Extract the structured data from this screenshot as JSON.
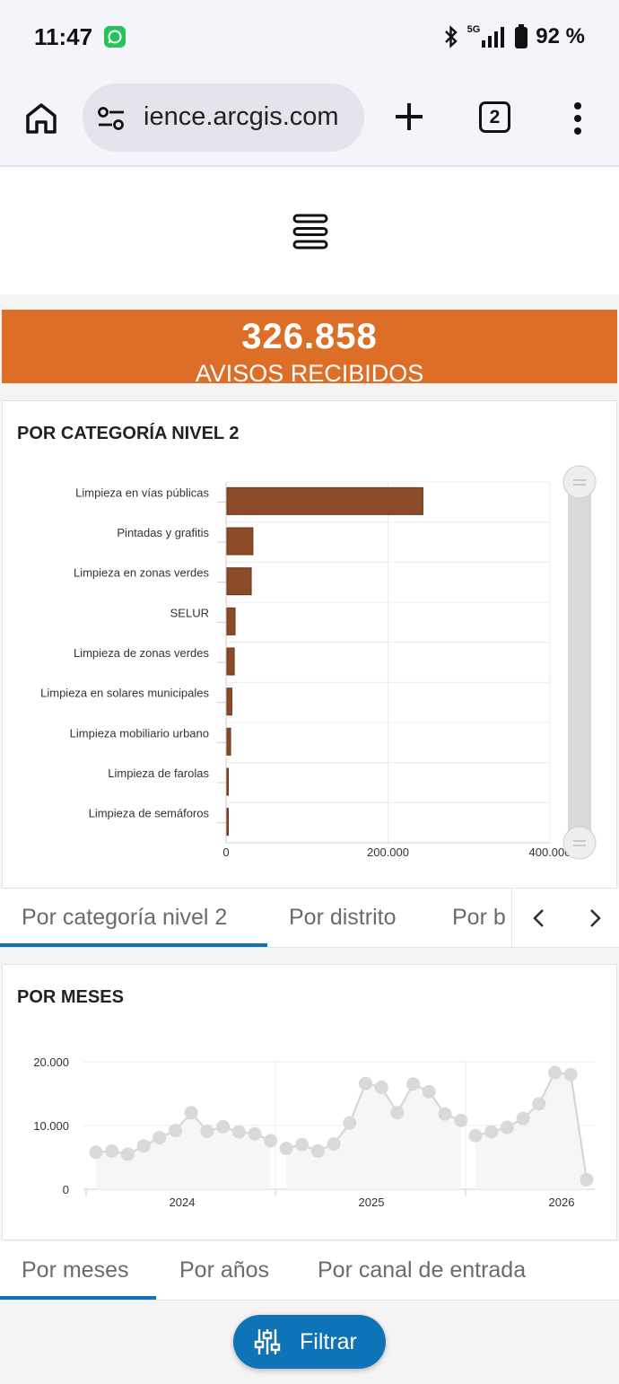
{
  "status_bar": {
    "time": "11:47",
    "network": "5G",
    "battery": "92 %"
  },
  "browser": {
    "url": "ience.arcgis.com",
    "tab_count": "2"
  },
  "kpi": {
    "value": "326.858",
    "label": "AVISOS RECIBIDOS",
    "color": "#dc6e28"
  },
  "category_panel": {
    "title": "POR CATEGORÍA NIVEL 2"
  },
  "category_tabs": [
    {
      "label": "Por categoría nivel 2",
      "active": true
    },
    {
      "label": "Por distrito",
      "active": false
    },
    {
      "label": "Por b",
      "active": false
    }
  ],
  "months_panel": {
    "title": "POR MESES"
  },
  "months_tabs": [
    {
      "label": "Por meses",
      "active": true
    },
    {
      "label": "Por años",
      "active": false
    },
    {
      "label": "Por canal de entrada",
      "active": false
    }
  ],
  "filter_button": {
    "label": "Filtrar"
  },
  "chart_data": [
    {
      "type": "bar",
      "orientation": "horizontal",
      "categories": [
        "Limpieza en vías públicas",
        "Pintadas y grafitis",
        "Limpieza en zonas verdes",
        "SELUR",
        "Limpieza de zonas verdes",
        "Limpieza en solares municipales",
        "Limpieza mobiliario urbano",
        "Limpieza de farolas",
        "Limpieza de semáforos"
      ],
      "values": [
        242000,
        32000,
        30000,
        10000,
        9000,
        6000,
        4500,
        1500,
        1200
      ],
      "xlim": [
        0,
        400000
      ],
      "xticks": [
        "0",
        "200.000",
        "400.000"
      ],
      "bar_color": "#8b4a28",
      "grid": true
    },
    {
      "type": "area",
      "y": [
        5800,
        6000,
        5500,
        6800,
        8100,
        9200,
        12000,
        9100,
        9800,
        9000,
        8700,
        7600,
        6400,
        7000,
        6000,
        7100,
        10400,
        16600,
        16000,
        12000,
        16500,
        15300,
        11800,
        10800,
        8400,
        9000,
        9700,
        11100,
        13400,
        18300,
        18000,
        1500
      ],
      "segments": [
        [
          0,
          12
        ],
        [
          12,
          24
        ],
        [
          24,
          32
        ]
      ],
      "ylim": [
        0,
        20000
      ],
      "yticks": [
        {
          "v": 0,
          "label": "0"
        },
        {
          "v": 10000,
          "label": "10.000"
        },
        {
          "v": 20000,
          "label": "20.000"
        }
      ],
      "xticks": [
        "2024",
        "2025",
        "2026"
      ],
      "line_color": "#d6d6d6",
      "grid": true
    }
  ]
}
